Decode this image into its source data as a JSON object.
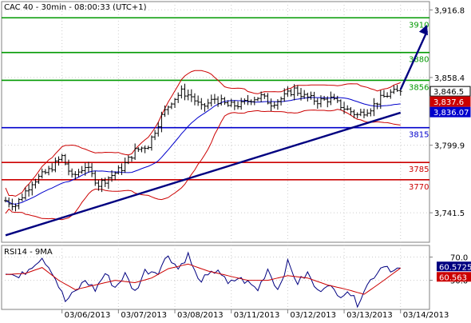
{
  "chart_data": [
    {
      "type": "candlestick",
      "title": "CAC 40 - 30min - 08:00:33 (UTC+1)",
      "ylim": [
        3716.0,
        3924.0
      ],
      "y_ticks": [
        3741.5,
        3799.9,
        3858.4,
        3916.8
      ],
      "y_tick_labels": [
        "3,741.5",
        "3,799.9",
        "3,858.4",
        "3,916.8"
      ],
      "x_tick_labels": [
        "03/06/2013",
        "03/07/2013",
        "03/08/2013",
        "03/11/2013",
        "03/12/2013",
        "03/13/2013",
        "03/14/2013"
      ],
      "bars_per_day": 17,
      "total_bars": 128,
      "price_anchors": [
        [
          0,
          3752
        ],
        [
          3,
          3748
        ],
        [
          8,
          3768
        ],
        [
          13,
          3778
        ],
        [
          17,
          3790
        ],
        [
          20,
          3772
        ],
        [
          24,
          3782
        ],
        [
          28,
          3766
        ],
        [
          31,
          3772
        ],
        [
          35,
          3780
        ],
        [
          39,
          3795
        ],
        [
          43,
          3800
        ],
        [
          47,
          3825
        ],
        [
          50,
          3838
        ],
        [
          53,
          3846
        ],
        [
          56,
          3842
        ],
        [
          59,
          3832
        ],
        [
          63,
          3840
        ],
        [
          67,
          3834
        ],
        [
          71,
          3835
        ],
        [
          74,
          3840
        ],
        [
          77,
          3842
        ],
        [
          80,
          3836
        ],
        [
          83,
          3840
        ],
        [
          87,
          3848
        ],
        [
          90,
          3842
        ],
        [
          94,
          3838
        ],
        [
          98,
          3840
        ],
        [
          102,
          3832
        ],
        [
          106,
          3826
        ],
        [
          110,
          3832
        ],
        [
          113,
          3840
        ],
        [
          116,
          3845
        ],
        [
          119,
          3846.5
        ]
      ],
      "horizontal_levels": [
        {
          "value": 3910,
          "label": "3910",
          "color": "#009900"
        },
        {
          "value": 3880,
          "label": "3880",
          "color": "#009900"
        },
        {
          "value": 3856,
          "label": "3856",
          "color": "#009900"
        },
        {
          "value": 3815,
          "label": "3815",
          "color": "#0000cc"
        },
        {
          "value": 3785,
          "label": "3785",
          "color": "#cc0000"
        },
        {
          "value": 3770,
          "label": "3770",
          "color": "#cc0000"
        }
      ],
      "trendline": {
        "start": [
          0,
          3722
        ],
        "end": [
          119,
          3828
        ],
        "color": "#000080"
      },
      "projection_arrow": {
        "from": [
          119,
          3848
        ],
        "to": [
          127,
          3904
        ],
        "color": "#000080"
      },
      "price_tags": [
        {
          "value": 3846.5,
          "label": "3,846.5",
          "bg": "#ffffff",
          "fg": "#000000",
          "border": "#000000"
        },
        {
          "value": 3837.6,
          "label": "3,837.6",
          "bg": "#cc0000",
          "fg": "#ffffff",
          "border": "#cc0000"
        },
        {
          "value": 3836.07,
          "label": "3,836.07",
          "bg": "#0000cc",
          "fg": "#ffffff",
          "border": "#0000cc"
        }
      ],
      "colors": {
        "price": "#000000",
        "bollinger": "#cc0000",
        "moving_average": "#0000cc",
        "grid": "#cccccc"
      }
    },
    {
      "type": "line",
      "title": "RSI14 - 9MA",
      "ylim": [
        25,
        80
      ],
      "y_ticks": [
        70.0,
        50.0
      ],
      "y_tick_labels": [
        "70.0",
        "50.0"
      ],
      "series": [
        {
          "name": "RSI14",
          "color": "#000080",
          "anchors": [
            [
              0,
              58
            ],
            [
              4,
              52
            ],
            [
              8,
              63
            ],
            [
              11,
              70
            ],
            [
              14,
              58
            ],
            [
              18,
              32
            ],
            [
              21,
              40
            ],
            [
              24,
              50
            ],
            [
              27,
              42
            ],
            [
              30,
              56
            ],
            [
              33,
              44
            ],
            [
              36,
              55
            ],
            [
              39,
              40
            ],
            [
              42,
              58
            ],
            [
              46,
              58
            ],
            [
              49,
              72
            ],
            [
              52,
              60
            ],
            [
              55,
              72
            ],
            [
              58,
              50
            ],
            [
              61,
              53
            ],
            [
              64,
              60
            ],
            [
              67,
              46
            ],
            [
              70,
              52
            ],
            [
              73,
              48
            ],
            [
              76,
              42
            ],
            [
              79,
              60
            ],
            [
              82,
              42
            ],
            [
              85,
              65
            ],
            [
              88,
              48
            ],
            [
              91,
              56
            ],
            [
              94,
              40
            ],
            [
              97,
              48
            ],
            [
              100,
              36
            ],
            [
              103,
              42
            ],
            [
              106,
              30
            ],
            [
              108,
              42
            ],
            [
              111,
              54
            ],
            [
              114,
              64
            ],
            [
              117,
              58
            ],
            [
              119,
              60.57
            ]
          ]
        },
        {
          "name": "9MA",
          "color": "#cc0000",
          "anchors": [
            [
              0,
              55
            ],
            [
              6,
              56
            ],
            [
              11,
              61
            ],
            [
              16,
              50
            ],
            [
              21,
              42
            ],
            [
              27,
              46
            ],
            [
              33,
              50
            ],
            [
              39,
              48
            ],
            [
              44,
              52
            ],
            [
              49,
              60
            ],
            [
              55,
              64
            ],
            [
              61,
              58
            ],
            [
              67,
              54
            ],
            [
              73,
              50
            ],
            [
              79,
              50
            ],
            [
              85,
              54
            ],
            [
              91,
              52
            ],
            [
              97,
              46
            ],
            [
              103,
              42
            ],
            [
              108,
              38
            ],
            [
              113,
              48
            ],
            [
              119,
              60.56
            ]
          ]
        }
      ],
      "value_tags": [
        {
          "value": 60.57,
          "label": "60.5725",
          "bg": "#000080",
          "fg": "#ffffff"
        },
        {
          "value": 60.56,
          "label": "60.563",
          "bg": "#cc0000",
          "fg": "#ffffff"
        }
      ]
    }
  ]
}
